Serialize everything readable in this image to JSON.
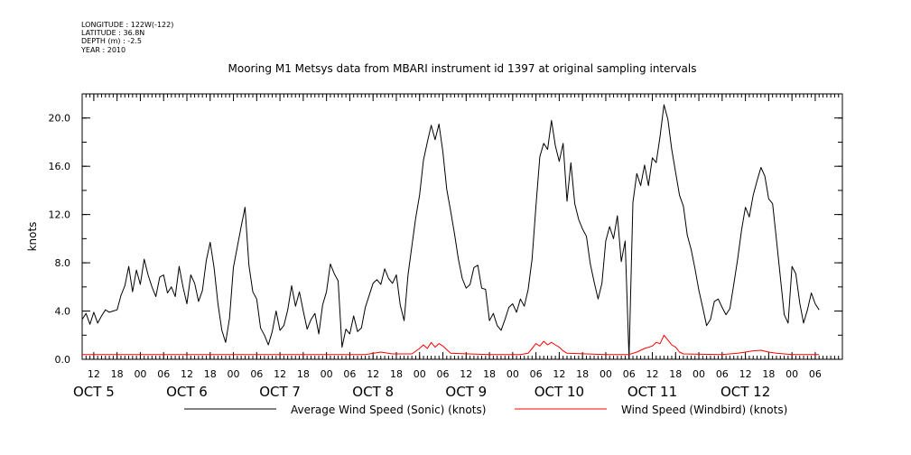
{
  "header": {
    "meta_lines": [
      "LONGITUDE : 122W(-122)",
      "LATITUDE : 36.8N",
      "DEPTH (m) : -2.5",
      "YEAR : 2010"
    ]
  },
  "chart_data": {
    "type": "line",
    "title": "Mooring M1 Metsys data from MBARI instrument id 1397 at original sampling intervals",
    "xlabel": "",
    "ylabel": "knots",
    "xlim_hours": [
      -15,
      181
    ],
    "ylim": [
      0.0,
      22.0
    ],
    "yticks": [
      "0.0",
      "4.0",
      "8.0",
      "12.0",
      "16.0",
      "20.0"
    ],
    "ytick_values": [
      0,
      4,
      8,
      12,
      16,
      20
    ],
    "hour_ticks": [
      "12",
      "18",
      "00",
      "06",
      "12",
      "18",
      "00",
      "06",
      "12",
      "18",
      "00",
      "06",
      "12",
      "18",
      "00",
      "06",
      "12",
      "18",
      "00",
      "06",
      "12",
      "18",
      "00",
      "06",
      "12",
      "18",
      "00",
      "06",
      "12",
      "18",
      "00",
      "06"
    ],
    "hour_tick_positions": [
      -12,
      -6,
      0,
      6,
      12,
      18,
      24,
      30,
      36,
      42,
      48,
      54,
      60,
      66,
      72,
      78,
      84,
      90,
      96,
      102,
      108,
      114,
      120,
      126,
      132,
      138,
      144,
      150,
      156,
      162,
      168,
      174
    ],
    "day_labels": [
      "OCT 5",
      "OCT 6",
      "OCT 7",
      "OCT 8",
      "OCT 9",
      "OCT 10",
      "OCT 11",
      "OCT 12"
    ],
    "day_label_positions": [
      -12,
      12,
      36,
      60,
      84,
      108,
      132,
      156
    ],
    "grid": false,
    "legend_position": "bottom",
    "series": [
      {
        "name": "Average Wind Speed (Sonic) (knots)",
        "color": "#000000",
        "points": [
          [
            -15,
            3.3
          ],
          [
            -14,
            3.8
          ],
          [
            -13,
            2.9
          ],
          [
            -12,
            3.9
          ],
          [
            -11,
            3.0
          ],
          [
            -10,
            3.6
          ],
          [
            -9,
            4.1
          ],
          [
            -8,
            3.9
          ],
          [
            -7,
            4.0
          ],
          [
            -6,
            4.1
          ],
          [
            -5,
            5.3
          ],
          [
            -4,
            6.1
          ],
          [
            -3,
            7.7
          ],
          [
            -2,
            5.6
          ],
          [
            -1,
            7.4
          ],
          [
            0,
            6.2
          ],
          [
            1,
            8.3
          ],
          [
            2,
            7.0
          ],
          [
            3,
            6.0
          ],
          [
            4,
            5.2
          ],
          [
            5,
            6.8
          ],
          [
            6,
            7.0
          ],
          [
            7,
            5.5
          ],
          [
            8,
            6.0
          ],
          [
            9,
            5.2
          ],
          [
            10,
            7.7
          ],
          [
            11,
            6.0
          ],
          [
            12,
            4.6
          ],
          [
            13,
            7.0
          ],
          [
            14,
            6.3
          ],
          [
            15,
            4.8
          ],
          [
            16,
            5.7
          ],
          [
            17,
            8.2
          ],
          [
            18,
            9.7
          ],
          [
            19,
            7.6
          ],
          [
            20,
            4.6
          ],
          [
            21,
            2.4
          ],
          [
            22,
            1.4
          ],
          [
            23,
            3.4
          ],
          [
            24,
            7.6
          ],
          [
            25,
            9.3
          ],
          [
            26,
            11.0
          ],
          [
            27,
            12.6
          ],
          [
            28,
            7.8
          ],
          [
            29,
            5.6
          ],
          [
            30,
            5.0
          ],
          [
            31,
            2.6
          ],
          [
            32,
            2.0
          ],
          [
            33,
            1.2
          ],
          [
            34,
            2.3
          ],
          [
            35,
            4.0
          ],
          [
            36,
            2.4
          ],
          [
            37,
            2.8
          ],
          [
            38,
            4.1
          ],
          [
            39,
            6.1
          ],
          [
            40,
            4.4
          ],
          [
            41,
            5.6
          ],
          [
            42,
            4.0
          ],
          [
            43,
            2.5
          ],
          [
            44,
            3.3
          ],
          [
            45,
            3.8
          ],
          [
            46,
            2.1
          ],
          [
            47,
            4.5
          ],
          [
            48,
            5.6
          ],
          [
            49,
            7.9
          ],
          [
            50,
            7.1
          ],
          [
            51,
            6.5
          ],
          [
            52,
            1.0
          ],
          [
            53,
            2.5
          ],
          [
            54,
            2.1
          ],
          [
            55,
            3.6
          ],
          [
            56,
            2.3
          ],
          [
            57,
            2.6
          ],
          [
            58,
            4.3
          ],
          [
            59,
            5.3
          ],
          [
            60,
            6.3
          ],
          [
            61,
            6.6
          ],
          [
            62,
            6.2
          ],
          [
            63,
            7.5
          ],
          [
            64,
            6.7
          ],
          [
            65,
            6.3
          ],
          [
            66,
            7.0
          ],
          [
            67,
            4.5
          ],
          [
            68,
            3.2
          ],
          [
            69,
            7.0
          ],
          [
            70,
            9.4
          ],
          [
            71,
            11.7
          ],
          [
            72,
            13.6
          ],
          [
            73,
            16.5
          ],
          [
            74,
            18.0
          ],
          [
            75,
            19.4
          ],
          [
            76,
            18.2
          ],
          [
            77,
            19.5
          ],
          [
            78,
            17.2
          ],
          [
            79,
            14.1
          ],
          [
            80,
            12.3
          ],
          [
            81,
            10.4
          ],
          [
            82,
            8.3
          ],
          [
            83,
            6.7
          ],
          [
            84,
            5.9
          ],
          [
            85,
            6.2
          ],
          [
            86,
            7.6
          ],
          [
            87,
            7.8
          ],
          [
            88,
            5.9
          ],
          [
            89,
            5.8
          ],
          [
            90,
            3.2
          ],
          [
            91,
            3.8
          ],
          [
            92,
            2.8
          ],
          [
            93,
            2.4
          ],
          [
            94,
            3.3
          ],
          [
            95,
            4.3
          ],
          [
            96,
            4.6
          ],
          [
            97,
            3.9
          ],
          [
            98,
            5.0
          ],
          [
            99,
            4.4
          ],
          [
            100,
            5.8
          ],
          [
            101,
            8.3
          ],
          [
            102,
            12.7
          ],
          [
            103,
            16.8
          ],
          [
            104,
            17.9
          ],
          [
            105,
            17.4
          ],
          [
            106,
            19.8
          ],
          [
            107,
            17.7
          ],
          [
            108,
            16.4
          ],
          [
            109,
            17.9
          ],
          [
            110,
            13.1
          ],
          [
            111,
            16.3
          ],
          [
            112,
            12.9
          ],
          [
            113,
            11.6
          ],
          [
            114,
            10.8
          ],
          [
            115,
            10.2
          ],
          [
            116,
            7.9
          ],
          [
            117,
            6.4
          ],
          [
            118,
            5.0
          ],
          [
            119,
            6.3
          ],
          [
            120,
            9.8
          ],
          [
            121,
            11.0
          ],
          [
            122,
            10.0
          ],
          [
            123,
            11.9
          ],
          [
            124,
            8.1
          ],
          [
            125,
            9.8
          ],
          [
            126,
            0.1
          ],
          [
            127,
            13.0
          ],
          [
            128,
            15.4
          ],
          [
            129,
            14.4
          ],
          [
            130,
            16.1
          ],
          [
            131,
            14.4
          ],
          [
            132,
            16.7
          ],
          [
            133,
            16.3
          ],
          [
            134,
            18.5
          ],
          [
            135,
            21.1
          ],
          [
            136,
            19.9
          ],
          [
            137,
            17.4
          ],
          [
            138,
            15.5
          ],
          [
            139,
            13.6
          ],
          [
            140,
            12.7
          ],
          [
            141,
            10.3
          ],
          [
            142,
            9.1
          ],
          [
            143,
            7.5
          ],
          [
            144,
            5.7
          ],
          [
            145,
            4.3
          ],
          [
            146,
            2.8
          ],
          [
            147,
            3.3
          ],
          [
            148,
            4.8
          ],
          [
            149,
            5.0
          ],
          [
            150,
            4.3
          ],
          [
            151,
            3.7
          ],
          [
            152,
            4.2
          ],
          [
            153,
            6.2
          ],
          [
            154,
            8.3
          ],
          [
            155,
            10.7
          ],
          [
            156,
            12.6
          ],
          [
            157,
            11.8
          ],
          [
            158,
            13.6
          ],
          [
            159,
            14.8
          ],
          [
            160,
            15.9
          ],
          [
            161,
            15.2
          ],
          [
            162,
            13.3
          ],
          [
            163,
            12.9
          ],
          [
            164,
            9.9
          ],
          [
            165,
            6.8
          ],
          [
            166,
            3.7
          ],
          [
            167,
            3.0
          ],
          [
            168,
            7.7
          ],
          [
            169,
            7.1
          ],
          [
            170,
            4.7
          ],
          [
            171,
            3.0
          ],
          [
            172,
            4.1
          ],
          [
            173,
            5.5
          ],
          [
            174,
            4.6
          ],
          [
            175,
            4.1
          ]
        ]
      },
      {
        "name": "Wind Speed (Windbird) (knots)",
        "color": "#ff0000",
        "points": [
          [
            -15,
            0.4
          ],
          [
            10,
            0.4
          ],
          [
            30,
            0.4
          ],
          [
            50,
            0.4
          ],
          [
            58,
            0.4
          ],
          [
            62,
            0.6
          ],
          [
            65,
            0.45
          ],
          [
            70,
            0.45
          ],
          [
            72,
            0.9
          ],
          [
            73,
            1.2
          ],
          [
            74,
            0.9
          ],
          [
            75,
            1.4
          ],
          [
            76,
            1.0
          ],
          [
            77,
            1.3
          ],
          [
            78,
            1.1
          ],
          [
            79,
            0.8
          ],
          [
            80,
            0.5
          ],
          [
            90,
            0.4
          ],
          [
            98,
            0.4
          ],
          [
            100,
            0.5
          ],
          [
            101,
            0.9
          ],
          [
            102,
            1.3
          ],
          [
            103,
            1.1
          ],
          [
            104,
            1.5
          ],
          [
            105,
            1.2
          ],
          [
            106,
            1.4
          ],
          [
            107,
            1.2
          ],
          [
            108,
            1.0
          ],
          [
            109,
            0.7
          ],
          [
            110,
            0.5
          ],
          [
            120,
            0.4
          ],
          [
            126,
            0.4
          ],
          [
            128,
            0.6
          ],
          [
            130,
            0.9
          ],
          [
            132,
            1.1
          ],
          [
            133,
            1.4
          ],
          [
            134,
            1.3
          ],
          [
            135,
            2.0
          ],
          [
            136,
            1.6
          ],
          [
            137,
            1.2
          ],
          [
            138,
            1.0
          ],
          [
            139,
            0.6
          ],
          [
            140,
            0.45
          ],
          [
            150,
            0.4
          ],
          [
            154,
            0.5
          ],
          [
            156,
            0.6
          ],
          [
            158,
            0.7
          ],
          [
            160,
            0.75
          ],
          [
            162,
            0.6
          ],
          [
            164,
            0.5
          ],
          [
            168,
            0.4
          ],
          [
            175,
            0.4
          ]
        ]
      }
    ]
  }
}
